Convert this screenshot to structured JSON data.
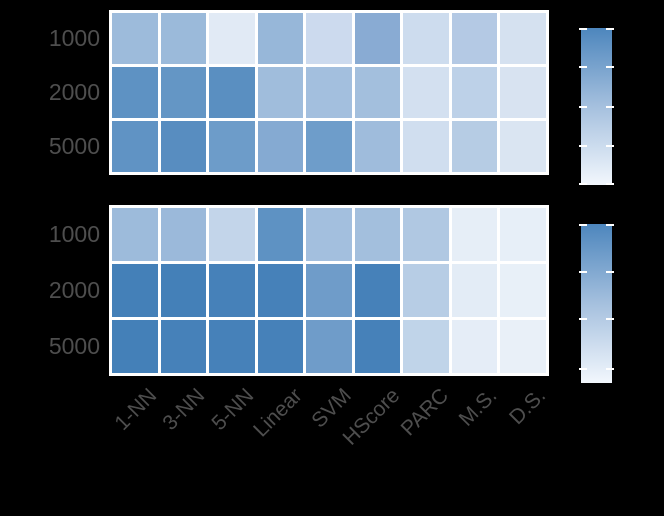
{
  "figure": {
    "background_color": "#000000",
    "label_color": "#4e4e4e",
    "grid_line_color": "#ffffff"
  },
  "columns": [
    "1-NN",
    "3-NN",
    "5-NN",
    "Linear",
    "SVM",
    "HScore",
    "PARC",
    "M.S.",
    "D.S."
  ],
  "row_labels": [
    "1000",
    "2000",
    "5000"
  ],
  "chart_data": [
    {
      "type": "heatmap",
      "title": "",
      "position": "top",
      "rows": [
        "1000",
        "2000",
        "5000"
      ],
      "columns": [
        "1-NN",
        "3-NN",
        "5-NN",
        "Linear",
        "SVM",
        "HScore",
        "PARC",
        "M.S.",
        "D.S."
      ],
      "cell_colors": [
        [
          "#9dbbdb",
          "#9bbada",
          "#e1eaf5",
          "#97b7d9",
          "#ccdaee",
          "#89abd3",
          "#cddcee",
          "#b4c9e4",
          "#d5e1f0"
        ],
        [
          "#5e92c3",
          "#6496c5",
          "#5a8fc1",
          "#a0bddc",
          "#a3bfde",
          "#a3bfdd",
          "#d3e0f0",
          "#bdd1e8",
          "#d8e3f1"
        ],
        [
          "#6093c4",
          "#588dc0",
          "#6d9cc9",
          "#85aad2",
          "#6e9dca",
          "#9fbcdc",
          "#d0deef",
          "#b6cce4",
          "#dae5f2"
        ]
      ],
      "values_norm_estimated": [
        [
          0.48,
          0.49,
          0.08,
          0.52,
          0.26,
          0.58,
          0.25,
          0.37,
          0.19
        ],
        [
          0.81,
          0.78,
          0.84,
          0.46,
          0.45,
          0.45,
          0.2,
          0.32,
          0.17
        ],
        [
          0.8,
          0.85,
          0.72,
          0.62,
          0.71,
          0.47,
          0.22,
          0.35,
          0.15
        ]
      ],
      "colormap": "Blues light-to-dark (#eef4fb to #4480b8)",
      "colorbar": {
        "labels_visible": false,
        "tick_fractions_from_top": [
          0.0,
          0.25,
          0.5,
          0.75,
          1.0
        ],
        "top_color": "#4d86bd",
        "mid_color": "#a5c0de",
        "bottom_color": "#f2f7fd"
      }
    },
    {
      "type": "heatmap",
      "title": "",
      "position": "bottom",
      "rows": [
        "1000",
        "2000",
        "5000"
      ],
      "columns": [
        "1-NN",
        "3-NN",
        "5-NN",
        "Linear",
        "SVM",
        "HScore",
        "PARC",
        "M.S.",
        "D.S."
      ],
      "cell_colors": [
        [
          "#9dbbdb",
          "#9bb9da",
          "#c3d5ea",
          "#5e92c3",
          "#a3bfde",
          "#a3bfdd",
          "#b0c8e2",
          "#e6eef7",
          "#e7eff8"
        ],
        [
          "#4480b8",
          "#4480b8",
          "#4681b9",
          "#4681b9",
          "#6f9cc9",
          "#4681b9",
          "#b7cde5",
          "#e3ecf6",
          "#e8f0f8"
        ],
        [
          "#4480b8",
          "#4681b9",
          "#4681b9",
          "#4681b9",
          "#6f9cc9",
          "#4681b9",
          "#c0d4e9",
          "#e5edf7",
          "#e9f0f8"
        ]
      ],
      "values_norm_estimated": [
        [
          0.48,
          0.49,
          0.3,
          0.81,
          0.45,
          0.45,
          0.4,
          0.1,
          0.09
        ],
        [
          1.0,
          1.0,
          0.99,
          0.99,
          0.71,
          0.99,
          0.34,
          0.12,
          0.08
        ],
        [
          1.0,
          0.99,
          0.99,
          0.99,
          0.71,
          0.99,
          0.28,
          0.11,
          0.07
        ]
      ],
      "colormap": "Blues light-to-dark (#eef4fb to #4480b8)",
      "colorbar": {
        "labels_visible": false,
        "tick_fractions_from_top": [
          0.0,
          0.3,
          0.6,
          0.91
        ],
        "top_color": "#4d86bd",
        "mid_color": "#a5c0de",
        "bottom_color": "#f2f7fd"
      }
    }
  ]
}
